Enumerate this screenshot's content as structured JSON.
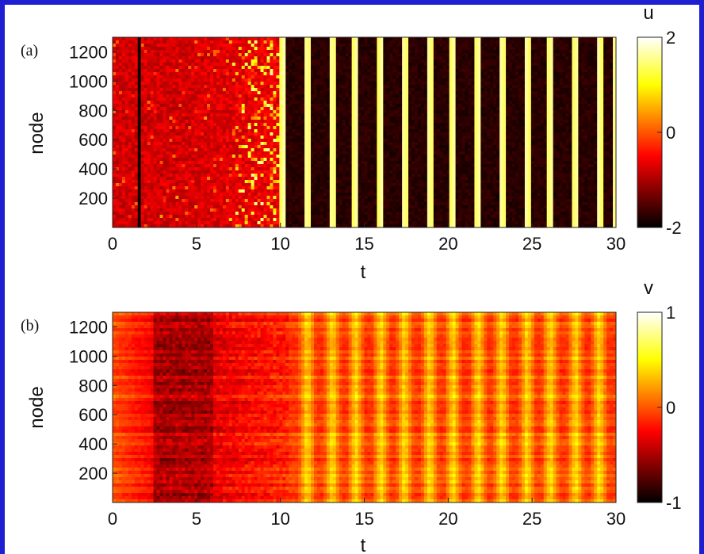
{
  "chart_data": [
    {
      "type": "heatmap",
      "panel_label": "(a)",
      "xlabel": "t",
      "ylabel": "node",
      "xlim": [
        0,
        30
      ],
      "ylim": [
        0,
        1300
      ],
      "x_ticks": [
        0,
        5,
        10,
        15,
        20,
        25,
        30
      ],
      "y_ticks": [
        200,
        400,
        600,
        800,
        1000,
        1200
      ],
      "colorbar": {
        "label": "u",
        "range": [
          -2,
          2
        ],
        "ticks": [
          -2,
          0,
          2
        ],
        "colormap": "hot"
      },
      "description_values": {
        "bright_stripe_times": [
          10.2,
          11.6,
          13.1,
          14.5,
          16.0,
          17.4,
          18.9,
          20.3,
          21.8,
          23.2,
          24.7,
          26.1,
          27.6,
          29.0,
          30.0
        ],
        "dark_band_times": [
          1.6
        ],
        "background_value_before_t10": -1.0,
        "background_value_after_t10": -2.0
      }
    },
    {
      "type": "heatmap",
      "panel_label": "(b)",
      "xlabel": "t",
      "ylabel": "node",
      "xlim": [
        0,
        30
      ],
      "ylim": [
        0,
        1300
      ],
      "x_ticks": [
        0,
        5,
        10,
        15,
        20,
        25,
        30
      ],
      "y_ticks": [
        200,
        400,
        600,
        800,
        1000,
        1200
      ],
      "colorbar": {
        "label": "v",
        "range": [
          -1,
          1
        ],
        "ticks": [
          -1,
          0,
          1
        ],
        "colormap": "hot"
      },
      "description_values": {
        "bright_stripe_times": [
          11.6,
          13.1,
          14.5,
          16.0,
          17.4,
          18.9,
          20.3,
          21.8,
          23.2,
          24.7,
          26.1,
          27.6,
          29.0
        ],
        "dark_region_t_range": [
          3,
          6
        ],
        "initial_value": 0.0
      }
    }
  ]
}
